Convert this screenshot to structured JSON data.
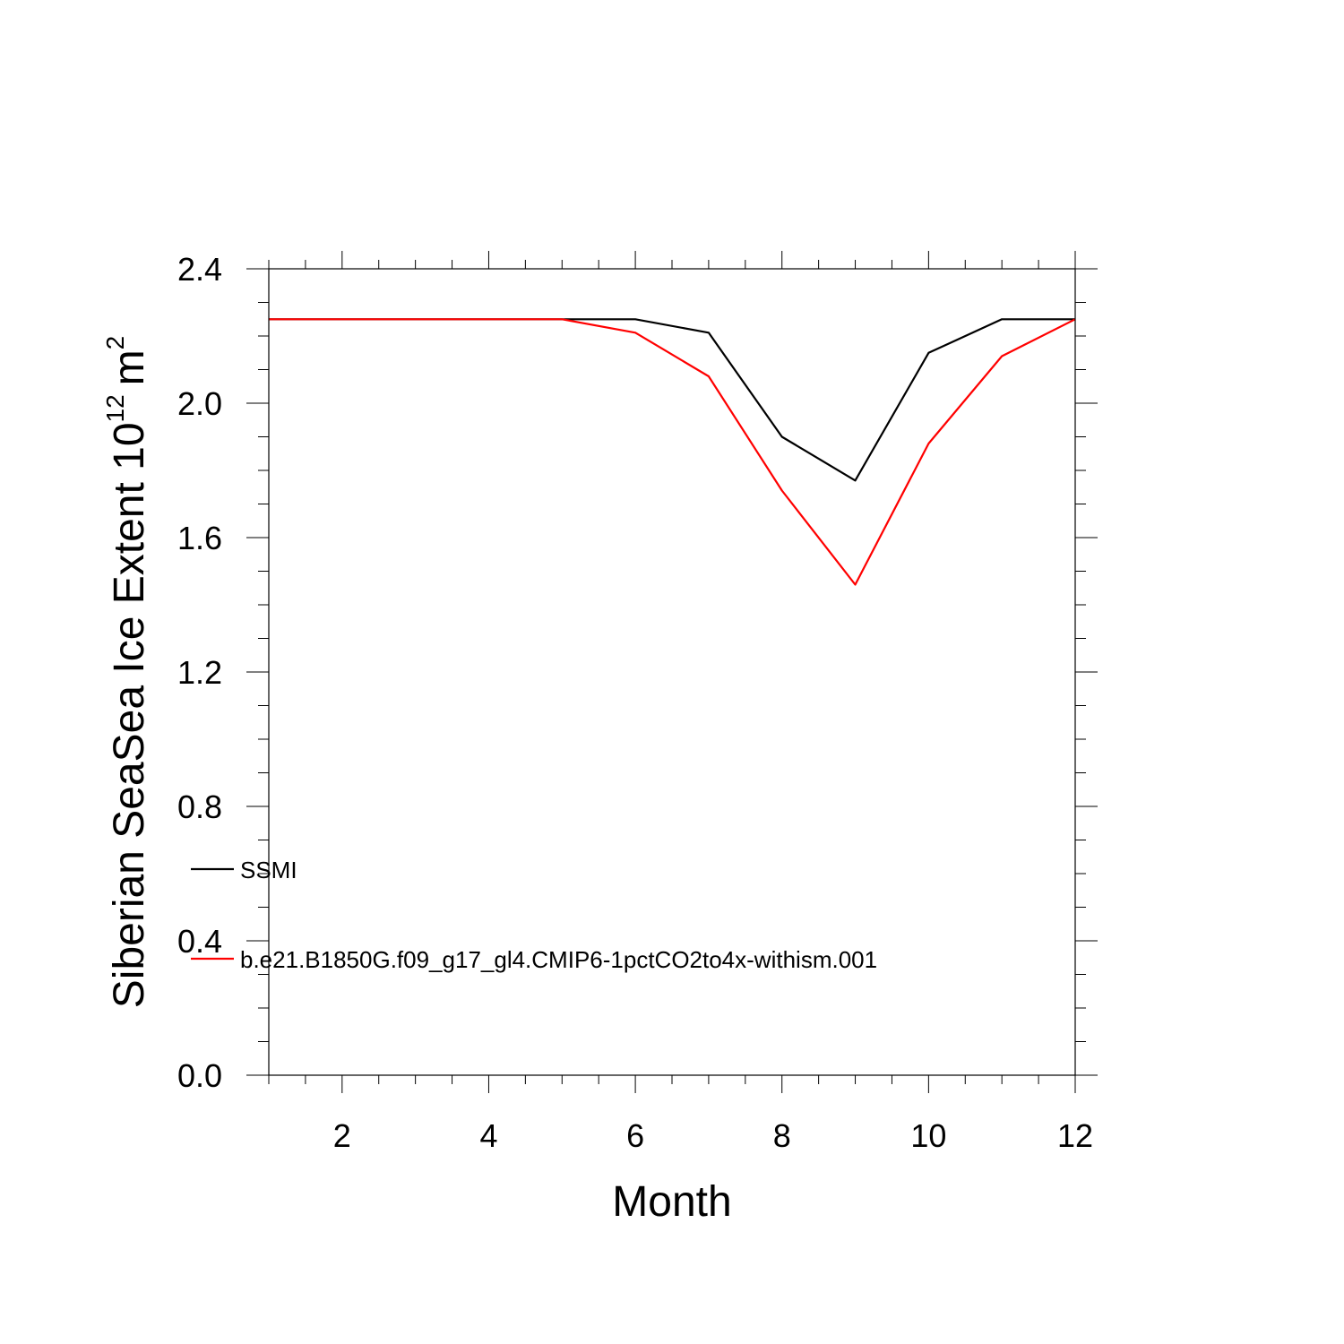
{
  "chart_data": {
    "type": "line",
    "title": "",
    "xlabel": "Month",
    "ylabel": {
      "text": "Siberian SeaSea Ice Extent 10",
      "exponent": "12",
      "unit": "m",
      "unit_exponent": "2"
    },
    "xlim": [
      1,
      12
    ],
    "ylim": [
      0.0,
      2.4
    ],
    "x_ticks": [
      2,
      4,
      6,
      8,
      10,
      12
    ],
    "x_tick_labels": [
      "2",
      "4",
      "6",
      "8",
      "10",
      "12"
    ],
    "y_ticks": [
      0.0,
      0.4,
      0.8,
      1.2,
      1.6,
      2.0,
      2.4
    ],
    "y_tick_labels": [
      "0.0",
      "0.4",
      "0.8",
      "1.2",
      "1.6",
      "2.0",
      "2.4"
    ],
    "grid": false,
    "legend_position": "lower-left",
    "x": [
      1,
      2,
      3,
      4,
      5,
      6,
      7,
      8,
      9,
      10,
      11,
      12
    ],
    "series": [
      {
        "name": "SSMI",
        "color": "#000000",
        "values": [
          2.25,
          2.25,
          2.25,
          2.25,
          2.25,
          2.25,
          2.21,
          1.9,
          1.77,
          2.15,
          2.25,
          2.25
        ]
      },
      {
        "name": "b.e21.B1850G.f09_g17_gl4.CMIP6-1pctCO2to4x-withism.001",
        "color": "#ff0000",
        "values": [
          2.25,
          2.25,
          2.25,
          2.25,
          2.25,
          2.21,
          2.08,
          1.74,
          1.46,
          1.88,
          2.14,
          2.25
        ]
      }
    ]
  }
}
